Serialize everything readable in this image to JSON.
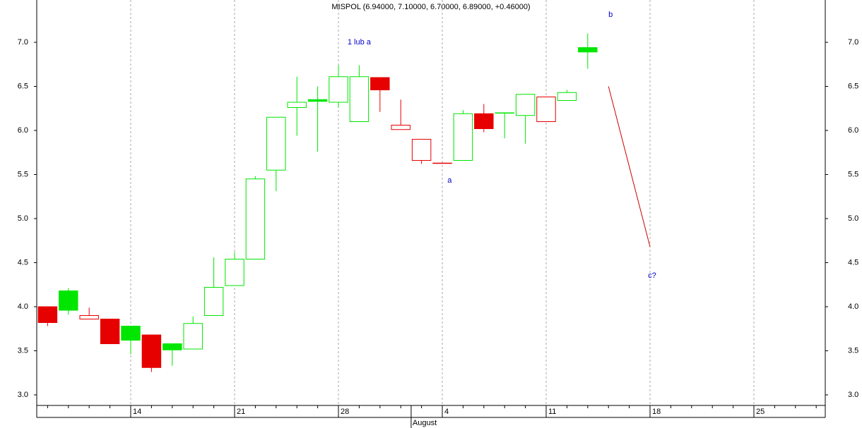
{
  "chart_data": {
    "type": "candlestick",
    "title": "MISPOL (6.94000, 7.10000, 6.70000, 6.89000, +0.46000)",
    "categories": [
      null,
      null,
      null,
      null,
      "14",
      null,
      null,
      null,
      null,
      "21",
      null,
      null,
      null,
      null,
      "28",
      null,
      null,
      null,
      null,
      "4",
      null,
      null,
      null,
      null,
      "11",
      null,
      null,
      null,
      null,
      "18",
      null,
      null,
      null,
      null,
      "25",
      null,
      null,
      null
    ],
    "open": [
      4.0,
      4.18,
      3.86,
      3.86,
      3.78,
      3.68,
      3.58,
      3.52,
      3.9,
      4.24,
      4.54,
      5.55,
      6.26,
      6.35,
      6.32,
      6.1,
      6.6,
      6.01,
      5.66,
      5.63,
      5.66,
      6.19,
      6.2,
      6.17,
      6.1,
      6.34,
      6.94,
      null,
      null,
      null,
      null,
      null,
      null,
      null,
      null,
      null,
      null,
      null
    ],
    "high": [
      4.0,
      4.21,
      3.99,
      3.86,
      3.78,
      3.68,
      3.58,
      3.89,
      4.56,
      4.62,
      5.48,
      6.15,
      6.61,
      6.5,
      6.74,
      6.74,
      6.6,
      6.35,
      5.9,
      5.63,
      6.23,
      6.3,
      6.2,
      6.41,
      6.38,
      6.46,
      7.1,
      null,
      null,
      null,
      null,
      null,
      null,
      null,
      null,
      null,
      null,
      null
    ],
    "low": [
      3.78,
      3.91,
      3.86,
      3.58,
      3.46,
      3.26,
      3.33,
      3.52,
      3.9,
      4.24,
      4.54,
      5.31,
      5.94,
      5.76,
      6.26,
      6.1,
      6.21,
      6.01,
      5.62,
      5.63,
      5.66,
      5.98,
      5.91,
      5.85,
      6.1,
      6.34,
      6.7,
      null,
      null,
      null,
      null,
      null,
      null,
      null,
      null,
      null,
      null,
      null
    ],
    "close": [
      3.82,
      3.96,
      3.9,
      3.58,
      3.62,
      3.31,
      3.51,
      3.81,
      4.22,
      4.54,
      5.45,
      6.15,
      6.32,
      6.33,
      6.61,
      6.61,
      6.46,
      6.06,
      5.9,
      5.63,
      6.19,
      6.02,
      6.2,
      6.41,
      6.38,
      6.43,
      6.89,
      null,
      null,
      null,
      null,
      null,
      null,
      null,
      null,
      null,
      null,
      null
    ],
    "up_color": "#00e600",
    "down_color": "#e60000",
    "ylim": [
      2.88,
      7.48
    ],
    "yticks": [
      {
        "value": 3,
        "label": "3.0"
      },
      {
        "value": 3.5,
        "label": "3.5"
      },
      {
        "value": 4,
        "label": "4.0"
      },
      {
        "value": 4.5,
        "label": "4.5"
      },
      {
        "value": 5,
        "label": "5.0"
      },
      {
        "value": 5.5,
        "label": "5.5"
      },
      {
        "value": 6,
        "label": "6.0"
      },
      {
        "value": 6.5,
        "label": "6.5"
      },
      {
        "value": 7,
        "label": "7.0"
      }
    ],
    "month_labels": [
      {
        "label": "August",
        "index": 18
      }
    ],
    "annotations": [
      {
        "text": "1 lub a",
        "x": 15,
        "y": 7.0
      },
      {
        "text": "a",
        "x": 19.35,
        "y": 5.43
      },
      {
        "text": "b",
        "x": 27.1,
        "y": 7.31
      },
      {
        "text": "c?",
        "x": 29.1,
        "y": 4.35
      }
    ],
    "trend_line": {
      "x": [
        27,
        29
      ],
      "y": [
        6.5,
        4.68
      ],
      "color": "#cc0000"
    },
    "grid": true
  }
}
